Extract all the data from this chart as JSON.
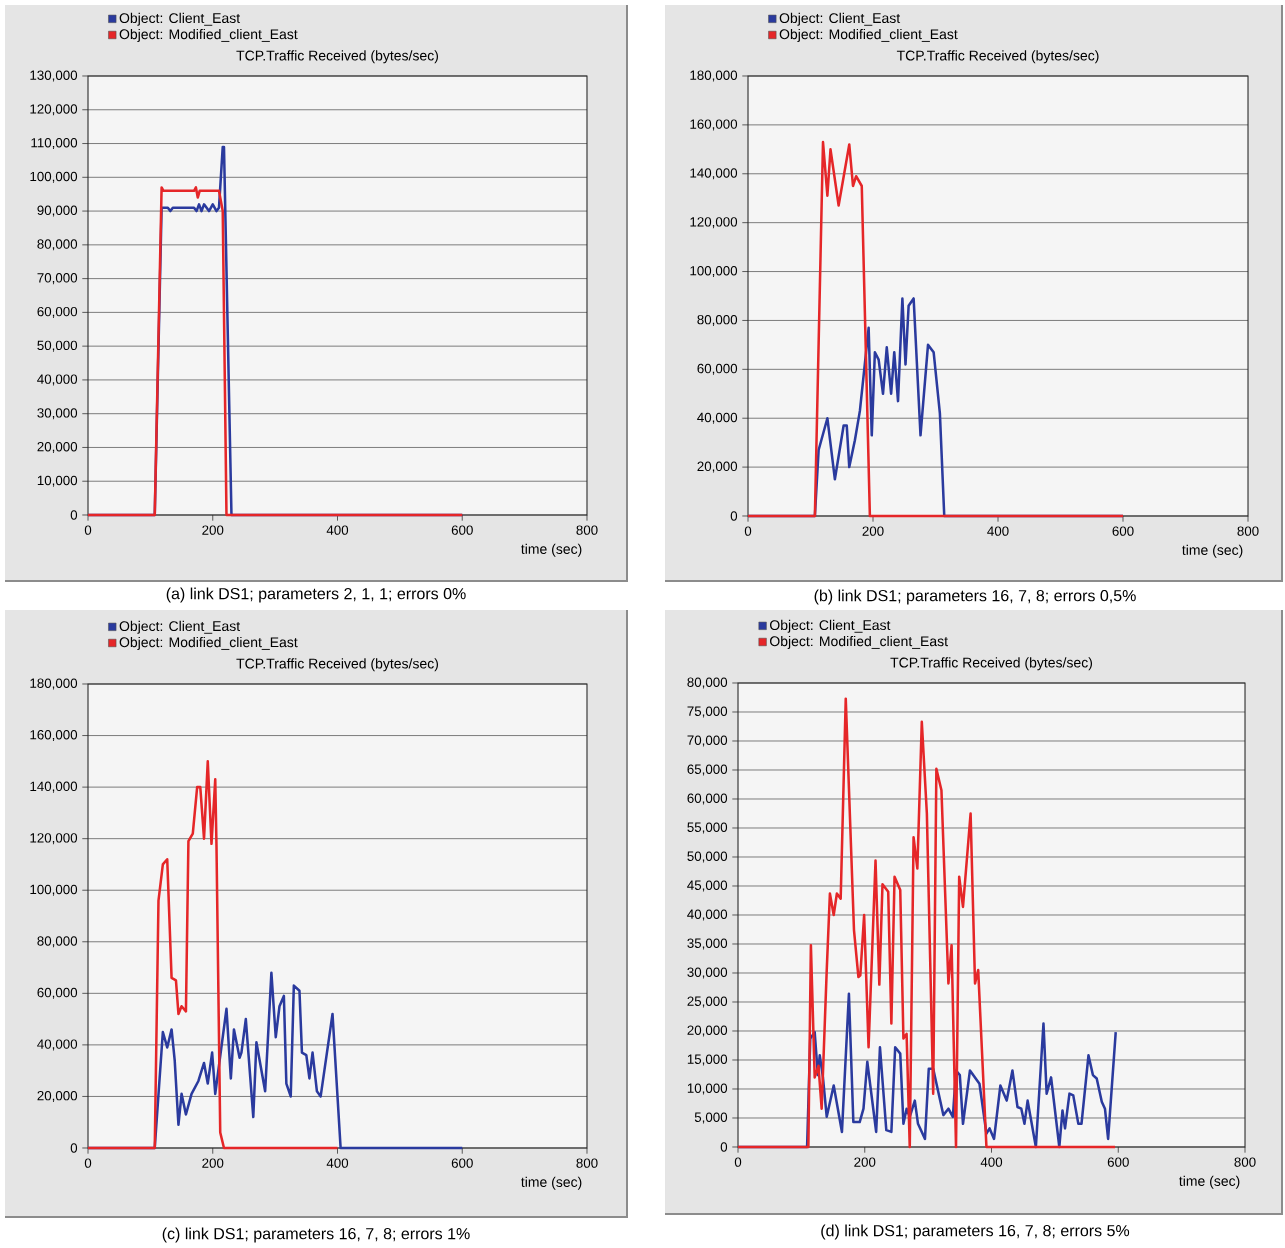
{
  "chart_data": [
    {
      "type": "line",
      "title": "TCP.Traffic Received (bytes/sec)",
      "xlabel": "time (sec)",
      "legend": "top left",
      "grid": "y",
      "xlim": [
        0,
        800
      ],
      "xticks": [
        0,
        200,
        400,
        600,
        800
      ],
      "ylim": [
        0,
        130000
      ],
      "yticks": [
        {
          "value": 0,
          "label": "0"
        },
        {
          "value": 10000,
          "label": "10,000"
        },
        {
          "value": 20000,
          "label": "20,000"
        },
        {
          "value": 30000,
          "label": "30,000"
        },
        {
          "value": 40000,
          "label": "40,000"
        },
        {
          "value": 50000,
          "label": "50,000"
        },
        {
          "value": 60000,
          "label": "60,000"
        },
        {
          "value": 70000,
          "label": "70,000"
        },
        {
          "value": 80000,
          "label": "80,000"
        },
        {
          "value": 90000,
          "label": "90,000"
        },
        {
          "value": 100000,
          "label": "100,000"
        },
        {
          "value": 110000,
          "label": "110,000"
        },
        {
          "value": 120000,
          "label": "120,000"
        },
        {
          "value": 130000,
          "label": "130,000"
        }
      ],
      "series": [
        {
          "name": "Object: Client_East",
          "color": "#2a3a9e",
          "x": [
            0,
            107,
            118,
            128,
            132,
            136,
            170,
            174,
            178,
            182,
            186,
            190,
            194,
            200,
            206,
            210,
            216,
            218,
            230,
            600
          ],
          "values": [
            0,
            0,
            91000,
            91000,
            90000,
            91000,
            91000,
            90000,
            92000,
            90000,
            92000,
            91000,
            90000,
            92000,
            90000,
            91000,
            109000,
            109000,
            0,
            0
          ]
        },
        {
          "name": "Object: Modified_client_East",
          "color": "#e52628",
          "x": [
            0,
            107,
            118,
            121,
            170,
            173,
            176,
            179,
            182,
            210,
            216,
            222,
            600
          ],
          "values": [
            0,
            0,
            97000,
            96000,
            96000,
            97000,
            94000,
            96000,
            96000,
            96000,
            90000,
            0,
            0
          ]
        }
      ],
      "annotations": [
        "(a) link DS1; parameters 2, 1, 1; errors 0%"
      ]
    },
    {
      "type": "line",
      "title": "TCP.Traffic Received (bytes/sec)",
      "xlabel": "time (sec)",
      "legend": "top left",
      "grid": "y",
      "xlim": [
        0,
        800
      ],
      "xticks": [
        0,
        200,
        400,
        600,
        800
      ],
      "ylim": [
        0,
        180000
      ],
      "yticks": [
        {
          "value": 0,
          "label": "0"
        },
        {
          "value": 20000,
          "label": "20,000"
        },
        {
          "value": 40000,
          "label": "40,000"
        },
        {
          "value": 60000,
          "label": "60,000"
        },
        {
          "value": 80000,
          "label": "80,000"
        },
        {
          "value": 100000,
          "label": "100,000"
        },
        {
          "value": 120000,
          "label": "120,000"
        },
        {
          "value": 140000,
          "label": "140,000"
        },
        {
          "value": 160000,
          "label": "160,000"
        },
        {
          "value": 180000,
          "label": "180,000"
        }
      ],
      "series": [
        {
          "name": "Object: Client_East",
          "color": "#2a3a9e",
          "x": [
            0,
            107,
            113,
            127,
            139,
            153,
            158,
            162,
            171,
            179,
            193,
            198,
            203,
            209,
            216,
            222,
            229,
            234,
            240,
            247,
            252,
            257,
            265,
            276,
            288,
            297,
            307,
            314,
            600
          ],
          "values": [
            0,
            0,
            27000,
            40000,
            15000,
            37000,
            37000,
            20000,
            31000,
            43000,
            77000,
            33000,
            67000,
            64000,
            50000,
            69000,
            50000,
            67000,
            47000,
            89000,
            62000,
            86000,
            89000,
            33000,
            70000,
            67000,
            42000,
            0,
            0
          ]
        },
        {
          "name": "Object: Modified_client_East",
          "color": "#e52628",
          "x": [
            0,
            107,
            120,
            127,
            132,
            145,
            162,
            168,
            173,
            182,
            195,
            600
          ],
          "values": [
            0,
            0,
            153000,
            131000,
            150000,
            127000,
            152000,
            135000,
            139000,
            135000,
            0,
            0
          ]
        }
      ],
      "annotations": [
        "(b) link DS1; parameters 16, 7, 8; errors 0,5%"
      ]
    },
    {
      "type": "line",
      "title": "TCP.Traffic Received (bytes/sec)",
      "xlabel": "time (sec)",
      "legend": "top left",
      "grid": "y",
      "xlim": [
        0,
        800
      ],
      "xticks": [
        0,
        200,
        400,
        600,
        800
      ],
      "ylim": [
        0,
        180000
      ],
      "yticks": [
        {
          "value": 0,
          "label": "0"
        },
        {
          "value": 20000,
          "label": "20,000"
        },
        {
          "value": 40000,
          "label": "40,000"
        },
        {
          "value": 60000,
          "label": "60,000"
        },
        {
          "value": 80000,
          "label": "80,000"
        },
        {
          "value": 100000,
          "label": "100,000"
        },
        {
          "value": 120000,
          "label": "120,000"
        },
        {
          "value": 140000,
          "label": "140,000"
        },
        {
          "value": 160000,
          "label": "160,000"
        },
        {
          "value": 180000,
          "label": "180,000"
        }
      ],
      "series": [
        {
          "name": "Object: Client_East",
          "color": "#2a3a9e",
          "x": [
            0,
            107,
            120,
            127,
            134,
            139,
            145,
            150,
            157,
            166,
            177,
            186,
            192,
            199,
            204,
            222,
            229,
            234,
            243,
            246,
            253,
            265,
            270,
            284,
            294,
            301,
            307,
            314,
            318,
            325,
            330,
            339,
            343,
            350,
            355,
            360,
            367,
            373,
            392,
            405,
            600
          ],
          "values": [
            0,
            0,
            45000,
            39000,
            46000,
            34000,
            9000,
            21000,
            13000,
            21000,
            26000,
            33000,
            25000,
            37000,
            21000,
            54000,
            27000,
            46000,
            35000,
            37000,
            50000,
            12000,
            41000,
            22000,
            68000,
            43000,
            55000,
            59000,
            25000,
            20000,
            63000,
            61000,
            37000,
            36000,
            27000,
            37000,
            22000,
            20000,
            52000,
            0,
            0
          ]
        },
        {
          "name": "Object: Modified_client_East",
          "color": "#e52628",
          "x": [
            0,
            107,
            113,
            120,
            127,
            134,
            141,
            145,
            150,
            157,
            161,
            168,
            175,
            180,
            186,
            192,
            198,
            204,
            206,
            212,
            218,
            400
          ],
          "values": [
            0,
            0,
            96000,
            110000,
            112000,
            66000,
            65000,
            52000,
            55000,
            53000,
            119000,
            122000,
            140000,
            140000,
            120000,
            150000,
            118000,
            143000,
            117000,
            6000,
            0,
            0
          ]
        }
      ],
      "annotations": [
        "(c) link DS1; parameters 16, 7, 8; errors 1%"
      ]
    },
    {
      "type": "line",
      "title": "TCP.Traffic Received (bytes/sec)",
      "xlabel": "time (sec)",
      "legend": "top left",
      "grid": "y",
      "xlim": [
        0,
        800
      ],
      "xticks": [
        0,
        200,
        400,
        600,
        800
      ],
      "ylim": [
        0,
        80000
      ],
      "yticks": [
        {
          "value": 0,
          "label": "0"
        },
        {
          "value": 5000,
          "label": "5,000"
        },
        {
          "value": 10000,
          "label": "10,000"
        },
        {
          "value": 15000,
          "label": "15,000"
        },
        {
          "value": 20000,
          "label": "20,000"
        },
        {
          "value": 25000,
          "label": "25,000"
        },
        {
          "value": 30000,
          "label": "30,000"
        },
        {
          "value": 35000,
          "label": "35,000"
        },
        {
          "value": 40000,
          "label": "40,000"
        },
        {
          "value": 45000,
          "label": "45,000"
        },
        {
          "value": 50000,
          "label": "50,000"
        },
        {
          "value": 55000,
          "label": "55,000"
        },
        {
          "value": 60000,
          "label": "60,000"
        },
        {
          "value": 65000,
          "label": "65,000"
        },
        {
          "value": 70000,
          "label": "70,000"
        },
        {
          "value": 75000,
          "label": "75,000"
        },
        {
          "value": 80000,
          "label": "80,000"
        }
      ],
      "series": [
        {
          "name": "Object: Client_East",
          "color": "#2a3a9e",
          "x": [
            0,
            109,
            114,
            121,
            126,
            129,
            134,
            140,
            151,
            164,
            175,
            182,
            192,
            198,
            204,
            218,
            224,
            234,
            242,
            248,
            256,
            261,
            266,
            271,
            279,
            284,
            295,
            301,
            308,
            324,
            332,
            339,
            344,
            350,
            355,
            366,
            381,
            392,
            397,
            404,
            414,
            424,
            433,
            441,
            447,
            452,
            457,
            470,
            482,
            487,
            494,
            507,
            512,
            516,
            523,
            529,
            537,
            542,
            553,
            560,
            566,
            574,
            579,
            584,
            596
          ],
          "values": [
            0,
            0,
            18700,
            19800,
            12400,
            15800,
            12000,
            5200,
            10600,
            2600,
            26400,
            4300,
            4300,
            6600,
            14700,
            2600,
            17200,
            2900,
            2600,
            17200,
            16100,
            4000,
            6600,
            5200,
            8000,
            4000,
            1400,
            13500,
            13500,
            5500,
            6600,
            5200,
            13200,
            12400,
            4000,
            13200,
            10900,
            2300,
            3200,
            1400,
            10600,
            8000,
            13200,
            6900,
            6600,
            4000,
            8000,
            0,
            21300,
            9200,
            12000,
            0,
            6300,
            3200,
            9200,
            8900,
            4000,
            4000,
            15800,
            12400,
            11800,
            7800,
            6600,
            1400,
            19800
          ]
        },
        {
          "name": "Object: Modified_client_East",
          "color": "#e52628",
          "x": [
            0,
            111,
            115,
            121,
            127,
            132,
            140,
            145,
            151,
            156,
            162,
            170,
            183,
            190,
            193,
            199,
            206,
            217,
            223,
            228,
            237,
            242,
            247,
            256,
            261,
            266,
            271,
            277,
            283,
            290,
            298,
            308,
            313,
            321,
            332,
            337,
            344,
            349,
            355,
            367,
            374,
            379,
            392,
            595
          ],
          "values": [
            0,
            0,
            34800,
            12000,
            14000,
            6600,
            30500,
            43700,
            40000,
            43700,
            42800,
            77300,
            37400,
            29300,
            29600,
            40000,
            17200,
            49400,
            28000,
            45300,
            44000,
            21300,
            46600,
            44300,
            18700,
            19500,
            0,
            53400,
            48000,
            73300,
            57500,
            9200,
            65200,
            61500,
            28200,
            34800,
            0,
            46600,
            41400,
            57500,
            28200,
            30500,
            0,
            0
          ]
        }
      ],
      "annotations": [
        "(d) link DS1; parameters 16, 7, 8; errors 5%"
      ]
    }
  ]
}
